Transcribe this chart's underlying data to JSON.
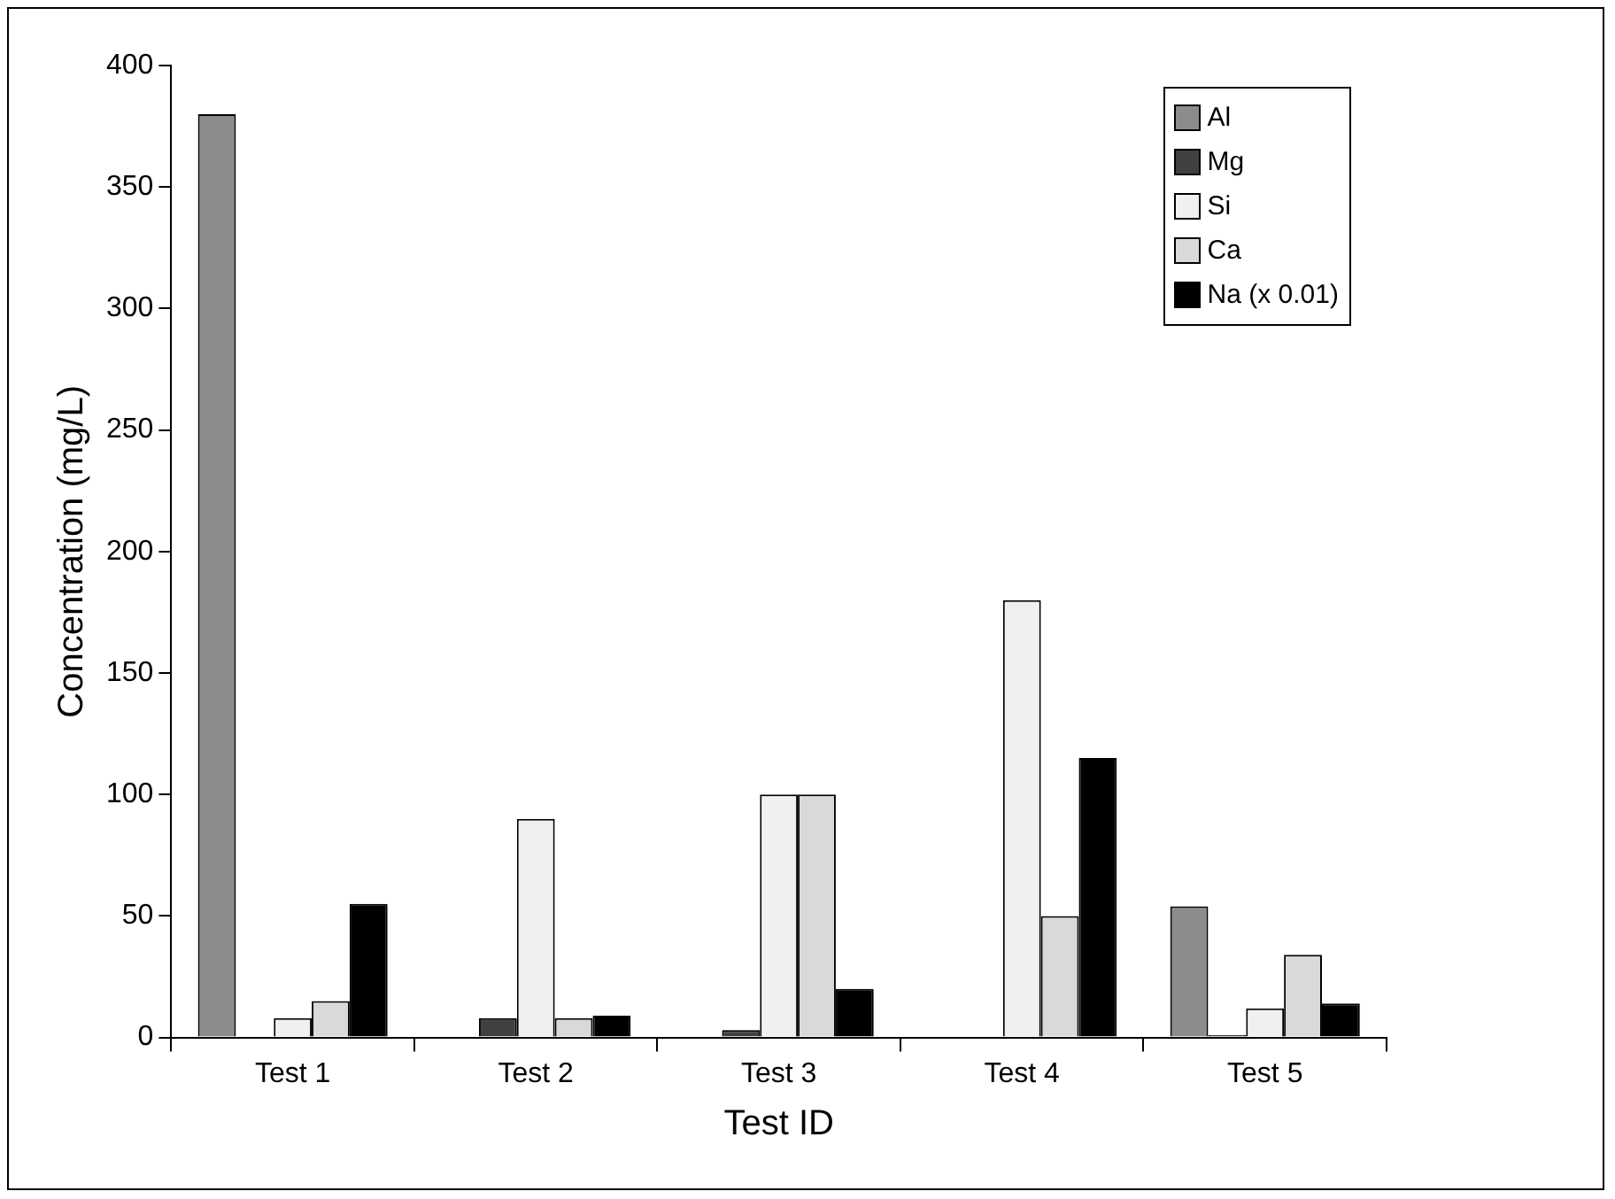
{
  "chart_data": {
    "type": "bar",
    "xlabel": "Test ID",
    "ylabel": "Concentration (mg/L)",
    "categories": [
      "Test 1",
      "Test 2",
      "Test 3",
      "Test 4",
      "Test 5"
    ],
    "series": [
      {
        "name": "Al",
        "color": "#8c8c8c",
        "values": [
          380,
          0,
          0,
          0,
          54
        ]
      },
      {
        "name": "Mg",
        "color": "#404040",
        "values": [
          0,
          8,
          3,
          0,
          1
        ]
      },
      {
        "name": "Si",
        "color": "#f0f0f0",
        "values": [
          8,
          90,
          100,
          180,
          12
        ]
      },
      {
        "name": "Ca",
        "color": "#d9d9d9",
        "values": [
          15,
          8,
          100,
          50,
          34
        ]
      },
      {
        "name": "Na (x 0.01)",
        "color": "#000000",
        "values": [
          55,
          9,
          20,
          115,
          14
        ]
      }
    ],
    "ylim": [
      0,
      400
    ],
    "yticks": [
      0,
      50,
      100,
      150,
      200,
      250,
      300,
      350,
      400
    ],
    "grid": false,
    "legend": "top right"
  }
}
